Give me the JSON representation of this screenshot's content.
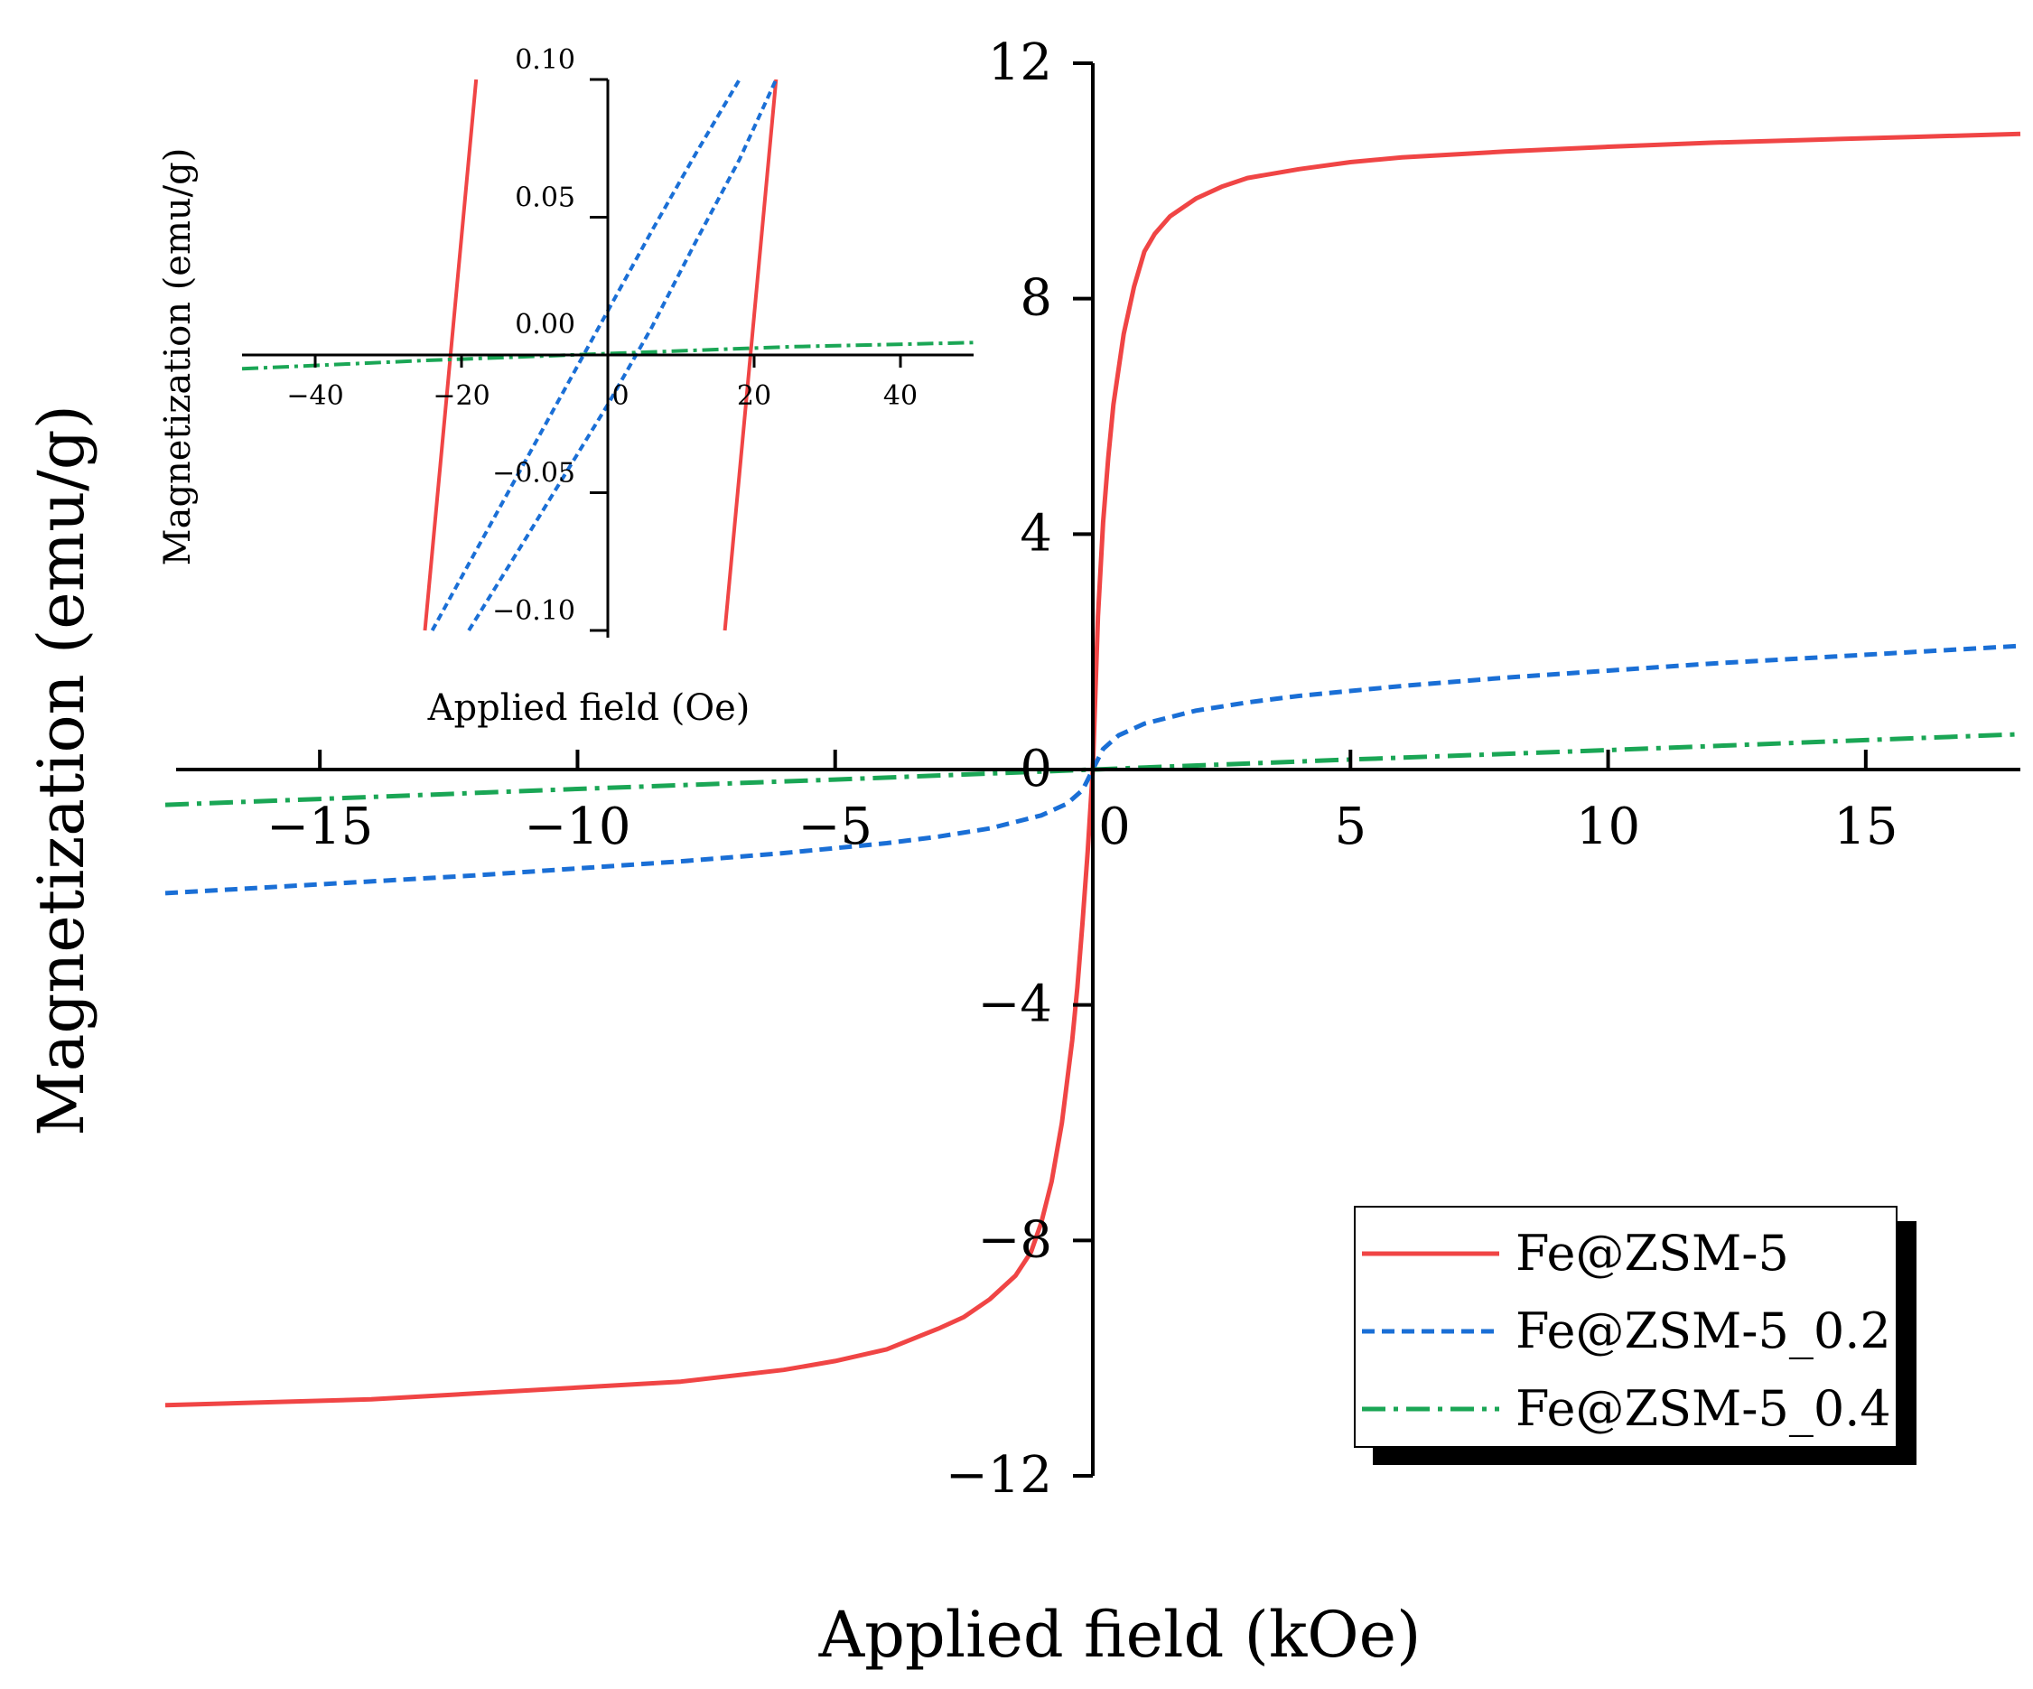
{
  "chart_data": [
    {
      "id": "main",
      "type": "line",
      "xlabel": "Applied field (kOe)",
      "ylabel": "Magnetization (emu/g)",
      "xlim": [
        -18,
        18
      ],
      "ylim": [
        -12,
        12
      ],
      "xticks": [
        -15,
        -10,
        -5,
        0,
        5,
        10,
        15
      ],
      "yticks": [
        -12,
        -8,
        -4,
        0,
        4,
        8,
        12
      ],
      "xtick_labels": [
        "−15",
        "−10",
        "−5",
        "0",
        "5",
        "10",
        "15"
      ],
      "ytick_labels": [
        "−12",
        "−8",
        "−4",
        "0",
        "4",
        "8",
        "12"
      ],
      "legend_position": "bottom-right",
      "series": [
        {
          "name": "Fe@ZSM-5",
          "color": "#f04545",
          "dash": "solid",
          "x": [
            -18,
            -16,
            -14,
            -12,
            -10,
            -8,
            -6,
            -5,
            -4,
            -3,
            -2.5,
            -2,
            -1.5,
            -1.2,
            -1,
            -0.8,
            -0.6,
            -0.4,
            -0.3,
            -0.2,
            -0.1,
            0,
            0.1,
            0.2,
            0.3,
            0.4,
            0.6,
            0.8,
            1,
            1.2,
            1.5,
            2,
            2.5,
            3,
            4,
            5,
            6,
            8,
            10,
            12,
            14,
            16,
            18
          ],
          "y": [
            -10.8,
            -10.75,
            -10.7,
            -10.6,
            -10.5,
            -10.4,
            -10.2,
            -10.05,
            -9.85,
            -9.5,
            -9.3,
            -9.0,
            -8.6,
            -8.2,
            -7.7,
            -7.0,
            -6.0,
            -4.6,
            -3.7,
            -2.6,
            -1.4,
            0,
            2.6,
            4.2,
            5.3,
            6.2,
            7.4,
            8.2,
            8.8,
            9.1,
            9.4,
            9.7,
            9.9,
            10.05,
            10.2,
            10.32,
            10.4,
            10.5,
            10.58,
            10.65,
            10.7,
            10.75,
            10.8
          ]
        },
        {
          "name": "Fe@ZSM-5_0.2",
          "color": "#1a6fd6",
          "dash": "dashed",
          "x": [
            -18,
            -15,
            -12,
            -10,
            -8,
            -6,
            -4,
            -3,
            -2,
            -1,
            -0.5,
            -0.2,
            0,
            0.2,
            0.5,
            1,
            2,
            3,
            4,
            6,
            8,
            10,
            12,
            15,
            18
          ],
          "y": [
            -2.1,
            -1.95,
            -1.8,
            -1.68,
            -1.56,
            -1.42,
            -1.25,
            -1.14,
            -1.0,
            -0.78,
            -0.58,
            -0.35,
            0,
            0.35,
            0.58,
            0.78,
            1.0,
            1.14,
            1.25,
            1.42,
            1.56,
            1.68,
            1.8,
            1.95,
            2.1
          ]
        },
        {
          "name": "Fe@ZSM-5_0.4",
          "color": "#1aa655",
          "dash": "dash-dot",
          "x": [
            -18,
            -15,
            -10,
            -5,
            0,
            5,
            10,
            15,
            18
          ],
          "y": [
            -0.6,
            -0.5,
            -0.33,
            -0.17,
            0,
            0.17,
            0.33,
            0.5,
            0.6
          ]
        }
      ]
    },
    {
      "id": "inset",
      "type": "line",
      "xlabel": "Applied field (Oe)",
      "ylabel": "Magnetization (emu/g)",
      "xlim": [
        -50,
        50
      ],
      "ylim": [
        -0.1,
        0.1
      ],
      "xticks": [
        -40,
        -20,
        0,
        20,
        40
      ],
      "yticks": [
        -0.1,
        -0.05,
        0,
        0.05,
        0.1
      ],
      "xtick_labels": [
        "−40",
        "−20",
        "0",
        "20",
        "40"
      ],
      "ytick_labels": [
        "−0.10",
        "−0.05",
        "0.00",
        "0.05",
        "0.10"
      ],
      "series": [
        {
          "name": "Fe@ZSM-5",
          "color": "#f04545",
          "dash": "solid",
          "segments": [
            {
              "x": [
                -25,
                -18
              ],
              "y": [
                -0.1,
                0.1
              ]
            },
            {
              "x": [
                16,
                23
              ],
              "y": [
                -0.1,
                0.1
              ]
            }
          ]
        },
        {
          "name": "Fe@ZSM-5_0.2",
          "color": "#1a6fd6",
          "dash": "dashed",
          "segments": [
            {
              "x": [
                -24,
                -18,
                -12,
                -6,
                0,
                6,
                12,
                18
              ],
              "y": [
                -0.1,
                -0.071,
                -0.042,
                -0.013,
                0.016,
                0.045,
                0.073,
                0.1
              ]
            },
            {
              "x": [
                -19,
                -12,
                -6,
                0,
                6,
                12,
                18,
                23
              ],
              "y": [
                -0.1,
                -0.07,
                -0.044,
                -0.018,
                0.01,
                0.041,
                0.071,
                0.1
              ]
            }
          ]
        },
        {
          "name": "Fe@ZSM-5_0.4",
          "color": "#1aa655",
          "dash": "dash-dot",
          "segments": [
            {
              "x": [
                -50,
                -25,
                0,
                25,
                50
              ],
              "y": [
                -0.005,
                -0.002,
                0.0005,
                0.003,
                0.0045
              ]
            }
          ]
        }
      ]
    }
  ]
}
